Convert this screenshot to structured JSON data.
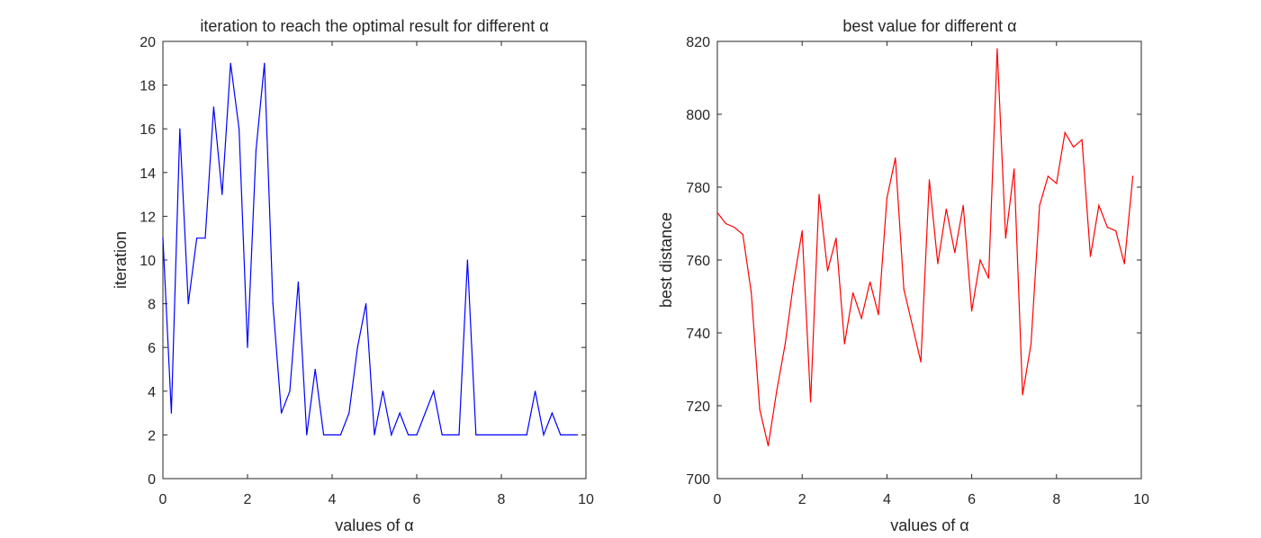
{
  "chart_data": [
    {
      "type": "line",
      "title": "iteration to reach the optimal result for different α",
      "xlabel": "values of α",
      "ylabel": "iteration",
      "xlim": [
        0,
        10
      ],
      "ylim": [
        0,
        20
      ],
      "xticks": [
        0,
        2,
        4,
        6,
        8,
        10
      ],
      "yticks": [
        0,
        2,
        4,
        6,
        8,
        10,
        12,
        14,
        16,
        18,
        20
      ],
      "grid": false,
      "color": "#0000ff",
      "series": [
        {
          "x": [
            0,
            0.2,
            0.4,
            0.6,
            0.8,
            1.0,
            1.2,
            1.4,
            1.6,
            1.8,
            2.0,
            2.2,
            2.4,
            2.6,
            2.8,
            3.0,
            3.2,
            3.4,
            3.6,
            3.8,
            4.0,
            4.2,
            4.4,
            4.6,
            4.8,
            5.0,
            5.2,
            5.4,
            5.6,
            5.8,
            6.0,
            6.2,
            6.4,
            6.6,
            6.8,
            7.0,
            7.2,
            7.4,
            7.6,
            7.8,
            8.0,
            8.2,
            8.4,
            8.6,
            8.8,
            9.0,
            9.2,
            9.4,
            9.6,
            9.8
          ],
          "y": [
            11,
            3,
            16,
            8,
            11,
            11,
            17,
            13,
            19,
            16,
            6,
            15,
            19,
            8,
            3,
            4,
            9,
            2,
            5,
            2,
            2,
            2,
            3,
            6,
            8,
            2,
            4,
            2,
            3,
            2,
            2,
            3,
            4,
            2,
            2,
            2,
            10,
            2,
            2,
            2,
            2,
            2,
            2,
            2,
            4,
            2,
            3,
            2,
            2,
            2
          ]
        }
      ]
    },
    {
      "type": "line",
      "title": "best value for different α",
      "xlabel": "values of α",
      "ylabel": "best distance",
      "xlim": [
        0,
        10
      ],
      "ylim": [
        700,
        820
      ],
      "xticks": [
        0,
        2,
        4,
        6,
        8,
        10
      ],
      "yticks": [
        700,
        720,
        740,
        760,
        780,
        800,
        820
      ],
      "grid": false,
      "color": "#ff0000",
      "series": [
        {
          "x": [
            0,
            0.2,
            0.4,
            0.6,
            0.8,
            1.0,
            1.2,
            1.4,
            1.6,
            1.8,
            2.0,
            2.2,
            2.4,
            2.6,
            2.8,
            3.0,
            3.2,
            3.4,
            3.6,
            3.8,
            4.0,
            4.2,
            4.4,
            4.6,
            4.8,
            5.0,
            5.2,
            5.4,
            5.6,
            5.8,
            6.0,
            6.2,
            6.4,
            6.6,
            6.8,
            7.0,
            7.2,
            7.4,
            7.6,
            7.8,
            8.0,
            8.2,
            8.4,
            8.6,
            8.8,
            9.0,
            9.2,
            9.4,
            9.6,
            9.8
          ],
          "y": [
            773,
            770,
            769,
            767,
            751,
            719,
            709,
            724,
            737,
            754,
            768,
            721,
            778,
            757,
            766,
            737,
            751,
            744,
            754,
            745,
            777,
            788,
            752,
            742,
            732,
            782,
            759,
            774,
            762,
            775,
            746,
            760,
            755,
            818,
            766,
            785,
            723,
            737,
            775,
            783,
            781,
            795,
            791,
            793,
            761,
            775,
            769,
            768,
            759,
            783
          ]
        }
      ]
    }
  ]
}
